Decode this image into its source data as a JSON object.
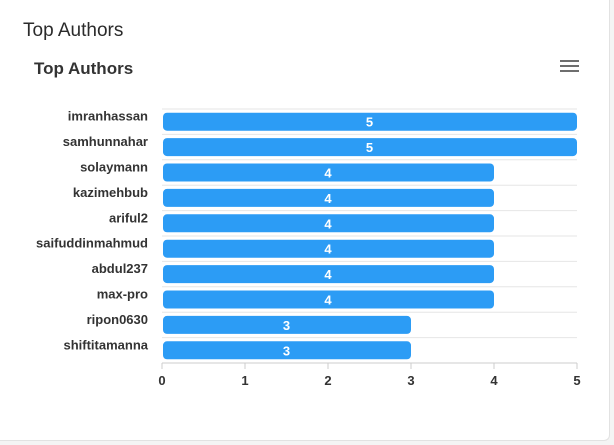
{
  "panel": {
    "title": "Top Authors"
  },
  "chart_data": {
    "type": "bar",
    "orientation": "horizontal",
    "title": "Top Authors",
    "xlabel": "",
    "ylabel": "",
    "categories": [
      "imranhassan",
      "samhunnahar",
      "solaymann",
      "kazimehbub",
      "ariful2",
      "saifuddinmahmud",
      "abdul237",
      "max-pro",
      "ripon0630",
      "shiftitamanna"
    ],
    "values": [
      5,
      5,
      4,
      4,
      4,
      4,
      4,
      4,
      3,
      3
    ],
    "xlim": [
      0,
      5
    ],
    "xticks": [
      "0",
      "1",
      "2",
      "3",
      "4",
      "5"
    ],
    "grid": true,
    "data_labels": true,
    "bar_color": "#2c9cf5",
    "menu_icon": "hamburger-menu-icon"
  }
}
